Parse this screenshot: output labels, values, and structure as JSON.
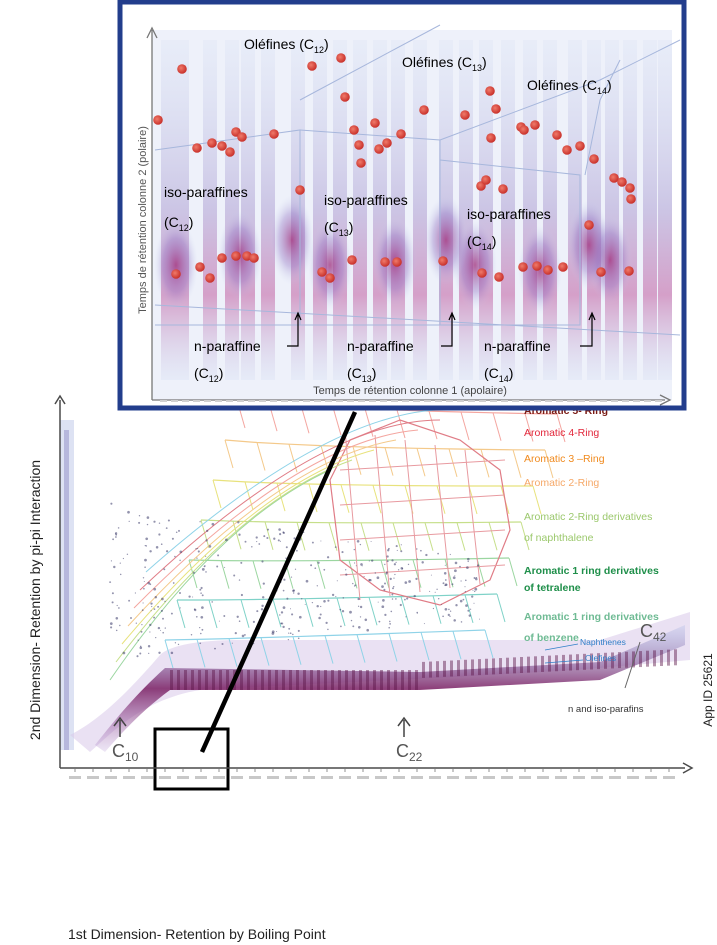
{
  "inset": {
    "x_axis_label": "Temps de rétention colonne 1 (apolaire)",
    "y_axis_label": "Temps de rétention colonne 2  (polaire)",
    "olefines": [
      {
        "base": "Oléfines (C",
        "sub": "12",
        "close": ")"
      },
      {
        "base": "Oléfines (C",
        "sub": "13",
        "close": ")"
      },
      {
        "base": "Oléfines (C",
        "sub": "14",
        "close": ")"
      }
    ],
    "iso_paraffines": [
      {
        "line1": "iso-paraffines",
        "base": "(C",
        "sub": "12",
        "close": ")"
      },
      {
        "line1": "iso-paraffines",
        "base": "(C",
        "sub": "13",
        "close": ")"
      },
      {
        "line1": "iso-paraffines",
        "base": "(C",
        "sub": "14",
        "close": ")"
      }
    ],
    "n_paraffine": [
      {
        "line1": "n-paraffine",
        "base": "(C",
        "sub": "12",
        "close": ")"
      },
      {
        "line1": "n-paraffine",
        "base": "(C",
        "sub": "13",
        "close": ")"
      },
      {
        "line1": "n-paraffine",
        "base": "(C",
        "sub": "14",
        "close": ")"
      }
    ]
  },
  "chart_data": {
    "type": "heatmap",
    "x_axis_label": "1st Dimension- Retention by Boiling Point",
    "y_axis_label": "2nd  Dimension- Retention by pi-pi Interaction",
    "x_markers": [
      {
        "base": "C",
        "sub": "10"
      },
      {
        "base": "C",
        "sub": "22"
      },
      {
        "base": "C",
        "sub": "42"
      }
    ],
    "legend": [
      {
        "label": "Aromatic 5- Ring",
        "color": "#7a1a14"
      },
      {
        "label": "Aromatic 4-Ring",
        "color": "#e2263a"
      },
      {
        "label": "Aromatic 3 –Ring",
        "color": "#f08a1e"
      },
      {
        "label": "Aromatic 2-Ring",
        "color": "#f6a868"
      },
      {
        "label": "Aromatic 2-Ring derivatives",
        "color": "#9bc86c"
      },
      {
        "label": "of naphthalene",
        "color": "#9bc86c"
      },
      {
        "label": "Aromatic 1 ring derivatives",
        "color": "#1f8f4a"
      },
      {
        "label": "of tetralene",
        "color": "#1f8f4a"
      },
      {
        "label": "Aromatic 1 ring derivatives",
        "color": "#6fbb94"
      },
      {
        "label": "of benzene",
        "color": "#6fbb94"
      }
    ],
    "region_labels": {
      "naphthenes": "Naphthenes",
      "olefines": "Olefines",
      "paraffins": "n and iso-parafins"
    },
    "app_id": "App ID 25621"
  }
}
